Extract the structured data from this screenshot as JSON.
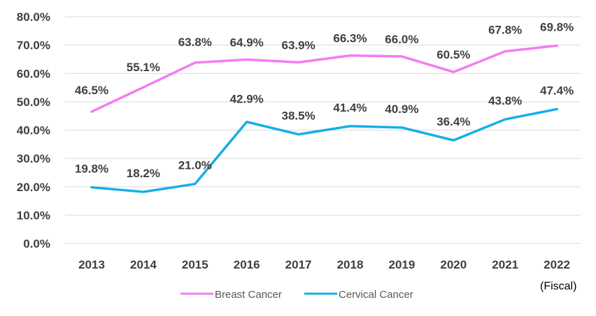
{
  "chart_data": {
    "type": "line",
    "categories": [
      "2013",
      "2014",
      "2015",
      "2016",
      "2017",
      "2018",
      "2019",
      "2020",
      "2021",
      "2022"
    ],
    "x_unit_label": "(Fiscal)",
    "y_ticks": [
      "0.0%",
      "10.0%",
      "20.0%",
      "30.0%",
      "40.0%",
      "50.0%",
      "60.0%",
      "70.0%",
      "80.0%"
    ],
    "ylim": [
      0,
      80
    ],
    "grid": true,
    "legend_position": "bottom",
    "series": [
      {
        "name": "Breast Cancer",
        "color": "#f57bf2",
        "values": [
          46.5,
          55.1,
          63.8,
          64.9,
          63.9,
          66.3,
          66.0,
          60.5,
          67.8,
          69.8
        ],
        "labels": [
          "46.5%",
          "55.1%",
          "63.8%",
          "64.9%",
          "63.9%",
          "66.3%",
          "66.0%",
          "60.5%",
          "67.8%",
          "69.8%"
        ]
      },
      {
        "name": "Cervical Cancer",
        "color": "#16aee8",
        "values": [
          19.8,
          18.2,
          21.0,
          42.9,
          38.5,
          41.4,
          40.9,
          36.4,
          43.8,
          47.4
        ],
        "labels": [
          "19.8%",
          "18.2%",
          "21.0%",
          "42.9%",
          "38.5%",
          "41.4%",
          "40.9%",
          "36.4%",
          "43.8%",
          "47.4%"
        ]
      }
    ]
  }
}
